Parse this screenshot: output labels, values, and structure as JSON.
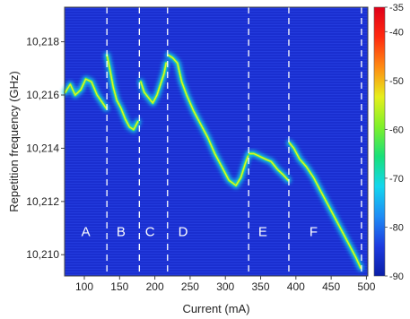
{
  "chart_data": {
    "type": "heatmap",
    "title": "",
    "xlabel": "Current (mA)",
    "ylabel": "Repetition frequency (GHz)",
    "xlim": [
      72,
      502
    ],
    "ylim": [
      10.2092,
      10.2193
    ],
    "x_ticks": [
      100,
      150,
      200,
      250,
      300,
      350,
      400,
      450,
      500
    ],
    "x_tick_labels": [
      "100",
      "150",
      "200",
      "250",
      "300",
      "350",
      "400",
      "450",
      "500"
    ],
    "y_ticks": [
      10.21,
      10.212,
      10.214,
      10.216,
      10.218
    ],
    "y_tick_labels": [
      "10,210",
      "10,212",
      "10,214",
      "10,216",
      "10,218"
    ],
    "colorbar": {
      "range": [
        -90,
        -35
      ],
      "ticks": [
        -35,
        -40,
        -50,
        -60,
        -70,
        -80,
        -90
      ],
      "tick_labels": [
        "-35",
        "-40",
        "-50",
        "-60",
        "-70",
        "-80",
        "-90"
      ],
      "colors": [
        "#0a1ea8",
        "#1d3be0",
        "#1e8cf5",
        "#13d6ee",
        "#18e07a",
        "#7ff02a",
        "#e6ef1c",
        "#ff8b12",
        "#ff2a10",
        "#e0001a"
      ]
    },
    "background_color": "#1a2fd0",
    "boundaries": [
      132,
      178,
      218,
      333,
      390,
      493
    ],
    "regions": [
      {
        "label": "A",
        "x": 102
      },
      {
        "label": "B",
        "x": 152
      },
      {
        "label": "C",
        "x": 193
      },
      {
        "label": "D",
        "x": 240
      },
      {
        "label": "E",
        "x": 353
      },
      {
        "label": "F",
        "x": 425
      }
    ],
    "trace_segments": [
      [
        [
          73,
          10.2161
        ],
        [
          80,
          10.2164
        ],
        [
          87,
          10.216
        ],
        [
          95,
          10.2162
        ],
        [
          102,
          10.2166
        ],
        [
          110,
          10.2165
        ],
        [
          118,
          10.216
        ],
        [
          126,
          10.2157
        ],
        [
          131,
          10.2155
        ]
      ],
      [
        [
          132,
          10.2175
        ],
        [
          136,
          10.217
        ],
        [
          141,
          10.2163
        ],
        [
          146,
          10.2158
        ],
        [
          152,
          10.2155
        ],
        [
          158,
          10.2151
        ],
        [
          164,
          10.2148
        ],
        [
          170,
          10.2147
        ],
        [
          176,
          10.215
        ]
      ],
      [
        [
          180,
          10.2165
        ],
        [
          185,
          10.2161
        ],
        [
          191,
          10.2159
        ],
        [
          197,
          10.2157
        ],
        [
          203,
          10.216
        ],
        [
          208,
          10.2164
        ],
        [
          213,
          10.2168
        ],
        [
          216,
          10.2172
        ]
      ],
      [
        [
          219,
          10.2175
        ],
        [
          225,
          10.2174
        ],
        [
          232,
          10.2172
        ],
        [
          238,
          10.2165
        ],
        [
          245,
          10.216
        ],
        [
          255,
          10.2154
        ],
        [
          265,
          10.2149
        ],
        [
          275,
          10.2144
        ],
        [
          285,
          10.2138
        ],
        [
          295,
          10.2133
        ],
        [
          305,
          10.2128
        ],
        [
          315,
          10.2126
        ],
        [
          322,
          10.2129
        ],
        [
          328,
          10.2134
        ],
        [
          332,
          10.2137
        ]
      ],
      [
        [
          334,
          10.2138
        ],
        [
          340,
          10.2138
        ],
        [
          348,
          10.2137
        ],
        [
          356,
          10.2136
        ],
        [
          365,
          10.2135
        ],
        [
          374,
          10.2132
        ],
        [
          382,
          10.213
        ],
        [
          389,
          10.2128
        ]
      ],
      [
        [
          391,
          10.2142
        ],
        [
          397,
          10.214
        ],
        [
          405,
          10.2136
        ],
        [
          415,
          10.2133
        ],
        [
          425,
          10.2129
        ],
        [
          435,
          10.2124
        ],
        [
          445,
          10.2119
        ],
        [
          455,
          10.2114
        ],
        [
          465,
          10.2109
        ],
        [
          475,
          10.2104
        ],
        [
          485,
          10.2099
        ],
        [
          492,
          10.2095
        ]
      ]
    ]
  }
}
